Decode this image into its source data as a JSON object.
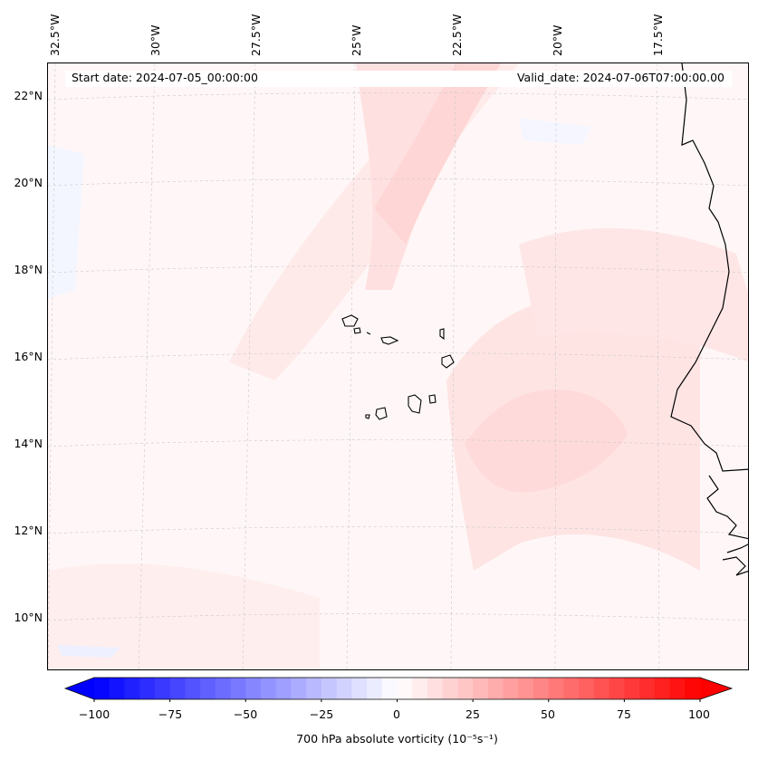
{
  "map": {
    "start_date": "Start date: 2024-07-05_00:00:00",
    "valid_date": "Valid_date: 2024-07-06T07:00:00.00",
    "lat_labels": [
      "22°N",
      "20°N",
      "18°N",
      "16°N",
      "14°N",
      "12°N",
      "10°N"
    ],
    "lon_labels": [
      "32.5°W",
      "30°W",
      "27.5°W",
      "25°W",
      "22.5°W",
      "20°W",
      "17.5°W"
    ],
    "field_colors": {
      "background": "#fff7f7",
      "light_red": "#ffe4e4",
      "medium_red": "#ffd0d0",
      "light_blue": "#f2f4ff"
    },
    "coastline_color": "#000000"
  },
  "colorbar": {
    "label": "700 hPa absolute vorticity (10⁻⁵s⁻¹)",
    "ticks": [
      "−100",
      "−75",
      "−50",
      "−25",
      "0",
      "25",
      "50",
      "75",
      "100"
    ],
    "min": -100,
    "max": 100,
    "step": 5,
    "cmap": "bwr"
  }
}
